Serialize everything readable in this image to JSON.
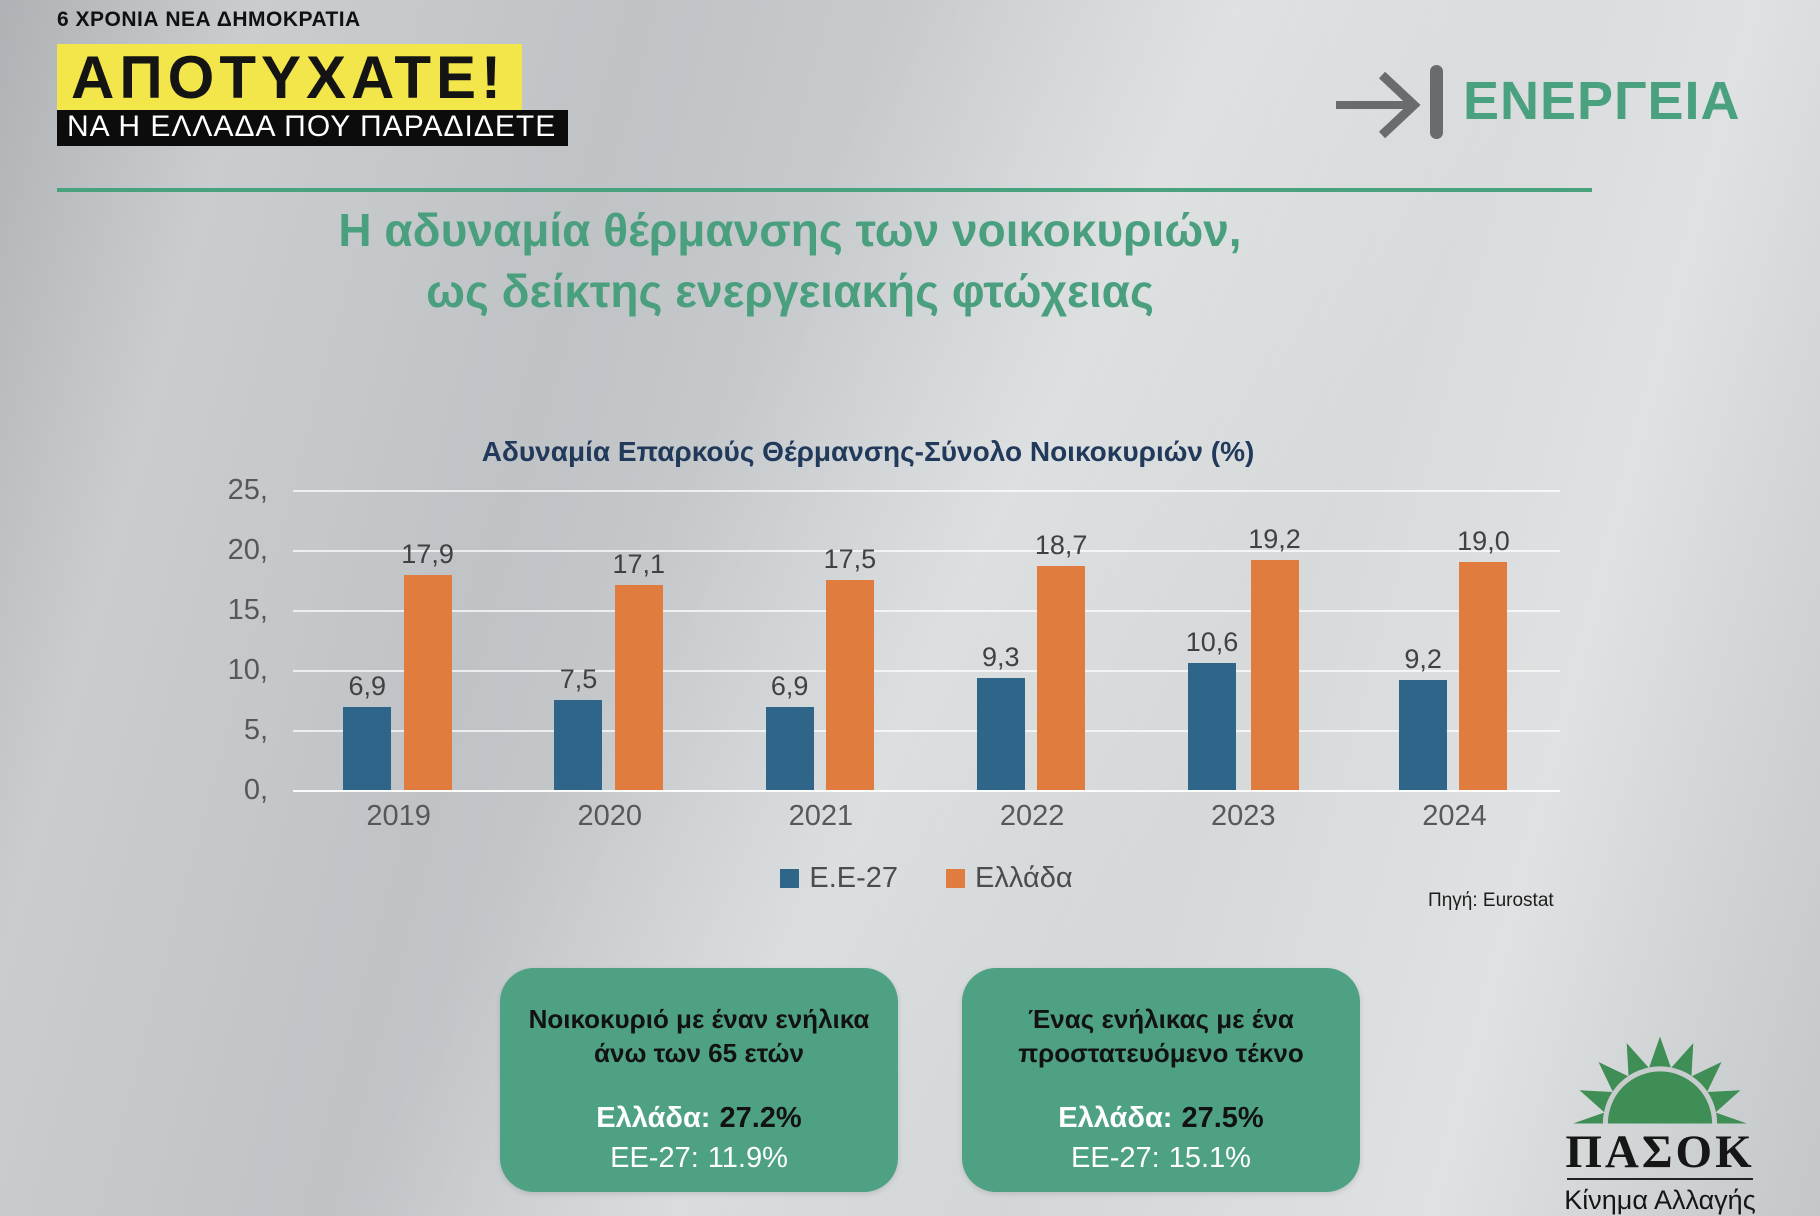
{
  "header": {
    "kicker": "6 ΧΡΟΝΙΑ ΝΕΑ ΔΗΜΟΚΡΑΤΙΑ",
    "headline": "ΑΠΟΤΥΧΑΤΕ!",
    "subheadline": "ΝΑ Η ΕΛΛΑΔΑ ΠΟΥ ΠΑΡΑΔΙΔΕΤΕ",
    "section_label": "ΕΝΕΡΓΕΙΑ"
  },
  "title": {
    "line1": "Η αδυναμία θέρμανσης των νοικοκυριών,",
    "line2": "ως δείκτης ενεργειακής φτώχειας"
  },
  "chart_data": {
    "type": "bar",
    "title": "Αδυναμία Επαρκούς Θέρμανσης-Σύνολο Νοικοκυριών (%)",
    "categories": [
      "2019",
      "2020",
      "2021",
      "2022",
      "2023",
      "2024"
    ],
    "series": [
      {
        "name": "Ε.Ε-27",
        "color": "#2f6588",
        "values": [
          6.9,
          7.5,
          6.9,
          9.3,
          10.6,
          9.2
        ],
        "labels": [
          "6,9",
          "7,5",
          "6,9",
          "9,3",
          "10,6",
          "9,2"
        ]
      },
      {
        "name": "Ελλάδα",
        "color": "#e07c3e",
        "values": [
          17.9,
          17.1,
          17.5,
          18.7,
          19.2,
          19.0
        ],
        "labels": [
          "17,9",
          "17,1",
          "17,5",
          "18,7",
          "19,2",
          "19,0"
        ]
      }
    ],
    "y_ticks": [
      "25,",
      "20,",
      "15,",
      "10,",
      "5,",
      "0,"
    ],
    "ylim": [
      0,
      25
    ],
    "grid": true,
    "legend_position": "bottom",
    "source": "Πηγή: Eurostat"
  },
  "callouts": [
    {
      "title_line1": "Νοικοκυριό με έναν ενήλικα",
      "title_line2": "άνω των 65 ετών",
      "greece_label": "Ελλάδα:",
      "greece_value": "27.2%",
      "eu_label": "ΕΕ-27:",
      "eu_value": "11.9%"
    },
    {
      "title_line1": "Ένας ενήλικας με ένα",
      "title_line2": "προστατευόμενο τέκνο",
      "greece_label": "Ελλάδα:",
      "greece_value": "27.5%",
      "eu_label": "ΕΕ-27:",
      "eu_value": "15.1%"
    }
  ],
  "logo": {
    "name": "ΠΑΣΟΚ",
    "tagline": "Κίνημα Αλλαγής"
  },
  "colors": {
    "accent_green": "#4aa17e",
    "callout_green": "#4fa183",
    "sun_green": "#3e8e55",
    "highlight_yellow": "#f2e64a",
    "navy": "#21395a",
    "eu_bar_blue": "#2f6588",
    "greece_bar_orange": "#e07c3e"
  }
}
